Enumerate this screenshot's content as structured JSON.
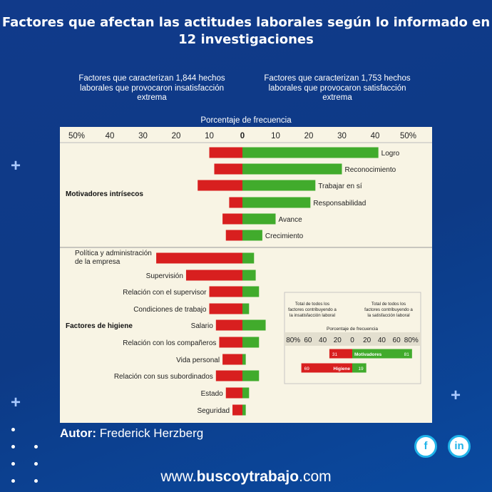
{
  "title": "Factores que afectan las actitudes laborales según lo informado en 12 investigaciones",
  "subheads": {
    "left": "Factores que caracterizan 1,844 hechos laborales que provocaron insatisfacción extrema",
    "right": "Factores que caracterizan 1,753 hechos laborales que provocaron satisfacción extrema"
  },
  "author": {
    "label": "Autor:",
    "name": "Frederick Herzberg"
  },
  "website": {
    "prefix": "www.",
    "brand": "buscoytrabajo",
    "suffix": ".com"
  },
  "social": {
    "facebook_icon": "facebook-icon",
    "linkedin_icon": "linkedin-icon"
  },
  "colors": {
    "dissatisfaction": "#d81f1f",
    "satisfaction": "#41ab2c",
    "background": "#0d3a86",
    "panel": "#f8f4e4"
  },
  "chart_data": [
    {
      "type": "bar",
      "orientation": "diverging-horizontal",
      "xlabel": "Porcentaje de frecuencia",
      "ticks": [
        "50%",
        "40",
        "30",
        "20",
        "10",
        "0",
        "10",
        "20",
        "30",
        "40",
        "50%"
      ],
      "xlim": [
        -50,
        50
      ],
      "groups": [
        {
          "name": "Motivadores intrísecos",
          "label_side": "right",
          "categories": [
            "Logro",
            "Reconocimiento",
            "Trabajar en sí",
            "Responsabilidad",
            "Avance",
            "Crecimiento"
          ]
        },
        {
          "name": "Factores de higiene",
          "label_side": "left",
          "categories": [
            "Política y administración de la empresa",
            "Supervisión",
            "Relación con el supervisor",
            "Condiciones de trabajo",
            "Salario",
            "Relación con los compañeros",
            "Vida personal",
            "Relación con sus subordinados",
            "Estado",
            "Seguridad"
          ]
        }
      ],
      "series": [
        {
          "name": "Factores que caracterizan 1,844 hechos laborales que provocaron insatisfacción extrema",
          "values": [
            10,
            8.5,
            13.5,
            4,
            6,
            5,
            26,
            17,
            10,
            10,
            8,
            7,
            6,
            8,
            5,
            3
          ]
        },
        {
          "name": "Factores que caracterizan 1,753 hechos laborales que provocaron satisfacción extrema",
          "values": [
            41,
            30,
            22,
            20.5,
            10,
            6,
            3.5,
            4,
            5,
            2,
            7,
            5,
            1,
            5,
            2,
            1
          ]
        }
      ]
    },
    {
      "type": "bar",
      "orientation": "diverging-horizontal",
      "legend_left": "Total de todos los factores contribuyendo a la insatisfacción laboral",
      "legend_right": "Total de todos los factores contribuyendo a la satisfacción laboral",
      "xlabel": "Porcentaje de frecuencia",
      "ticks": [
        "80%",
        "60",
        "40",
        "20",
        "0",
        "20",
        "40",
        "60",
        "80%"
      ],
      "xlim": [
        -80,
        80
      ],
      "categories": [
        "Motivadores",
        "Higiene"
      ],
      "series": [
        {
          "name": "insatisfacción",
          "values": [
            31,
            69
          ]
        },
        {
          "name": "satisfacción",
          "values": [
            81,
            19
          ]
        }
      ]
    }
  ]
}
